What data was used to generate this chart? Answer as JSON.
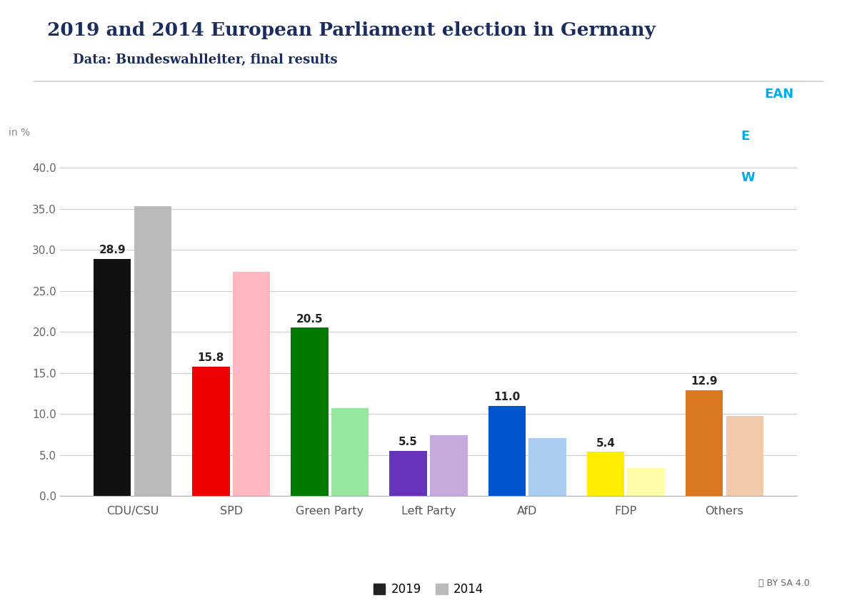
{
  "title": "2019 and 2014 European Parliament election in Germany",
  "subtitle": "Data: Bundeswahlleiter, final results",
  "ylabel": "in %",
  "categories": [
    "CDU/CSU",
    "SPD",
    "Green Party",
    "Left Party",
    "AfD",
    "FDP",
    "Others"
  ],
  "values_2019": [
    28.9,
    15.8,
    20.5,
    5.5,
    11.0,
    5.4,
    12.9
  ],
  "values_2014": [
    35.3,
    27.3,
    10.7,
    7.4,
    7.1,
    3.4,
    9.8
  ],
  "colors_2019": [
    "#111111",
    "#EE0000",
    "#007A00",
    "#6633BB",
    "#0055CC",
    "#FFEE00",
    "#D97820"
  ],
  "colors_2014": [
    "#BBBBBB",
    "#FFB8C0",
    "#96E6A0",
    "#C8AADD",
    "#AACCEE",
    "#FFFFAA",
    "#F0CAAA"
  ],
  "ylim": [
    0,
    42
  ],
  "yticks": [
    0.0,
    5.0,
    10.0,
    15.0,
    20.0,
    25.0,
    30.0,
    35.0,
    40.0
  ],
  "bar_width": 0.38,
  "bar_gap": 0.03,
  "title_color": "#1a2d5e",
  "subtitle_color": "#1a2d5e",
  "label_color": "#222222",
  "grid_color": "#cccccc",
  "background_color": "#ffffff",
  "logo_bg": "#0d2d6b",
  "logo_cyan": "#00AAEE"
}
